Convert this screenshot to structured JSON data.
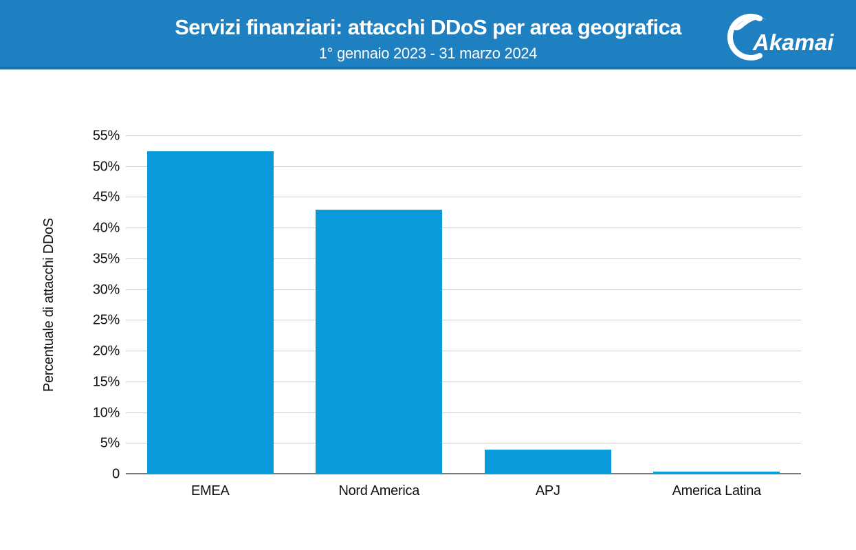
{
  "header": {
    "title": "Servizi finanziari: attacchi DDoS per area geografica",
    "subtitle": "1° gennaio 2023 - 31 marzo 2024",
    "logo_text": "Akamai",
    "background_color": "#1e80c1"
  },
  "chart_data": {
    "type": "bar",
    "title": "Servizi finanziari: attacchi DDoS per area geografica",
    "subtitle": "1° gennaio 2023 - 31 marzo 2024",
    "categories": [
      "EMEA",
      "Nord America",
      "APJ",
      "America Latina"
    ],
    "values": [
      52.5,
      43,
      4,
      0.5
    ],
    "xlabel": "",
    "ylabel": "Percentuale di attacchi DDoS",
    "ylim": [
      0,
      55
    ],
    "ytick_step": 5,
    "ytick_labels": [
      "0",
      "5%",
      "10%",
      "15%",
      "20%",
      "25%",
      "30%",
      "35%",
      "40%",
      "45%",
      "50%",
      "55%"
    ],
    "bar_color": "#0a9bdb",
    "grid": true,
    "legend": "none"
  }
}
